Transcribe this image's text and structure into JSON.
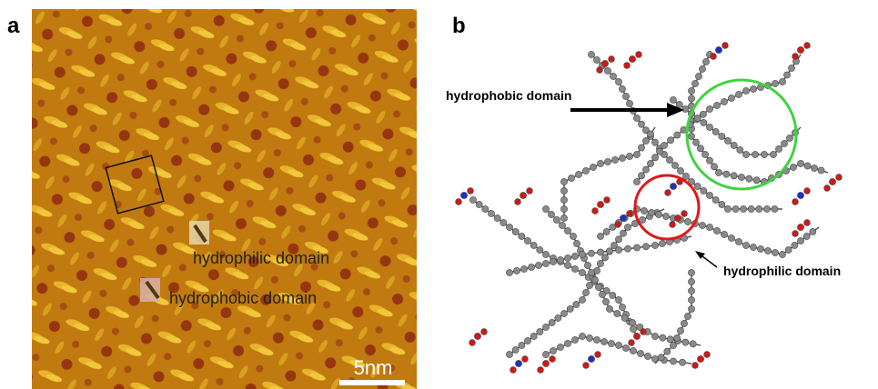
{
  "panel_a": {
    "label": "a",
    "annotations": [
      "hydrophilic domain",
      "hydrophobic domain"
    ],
    "scale_bar": "5nm"
  },
  "panel_b": {
    "label": "b",
    "annotations": [
      "hydrophobic domain",
      "hydrophilic domain"
    ]
  }
}
